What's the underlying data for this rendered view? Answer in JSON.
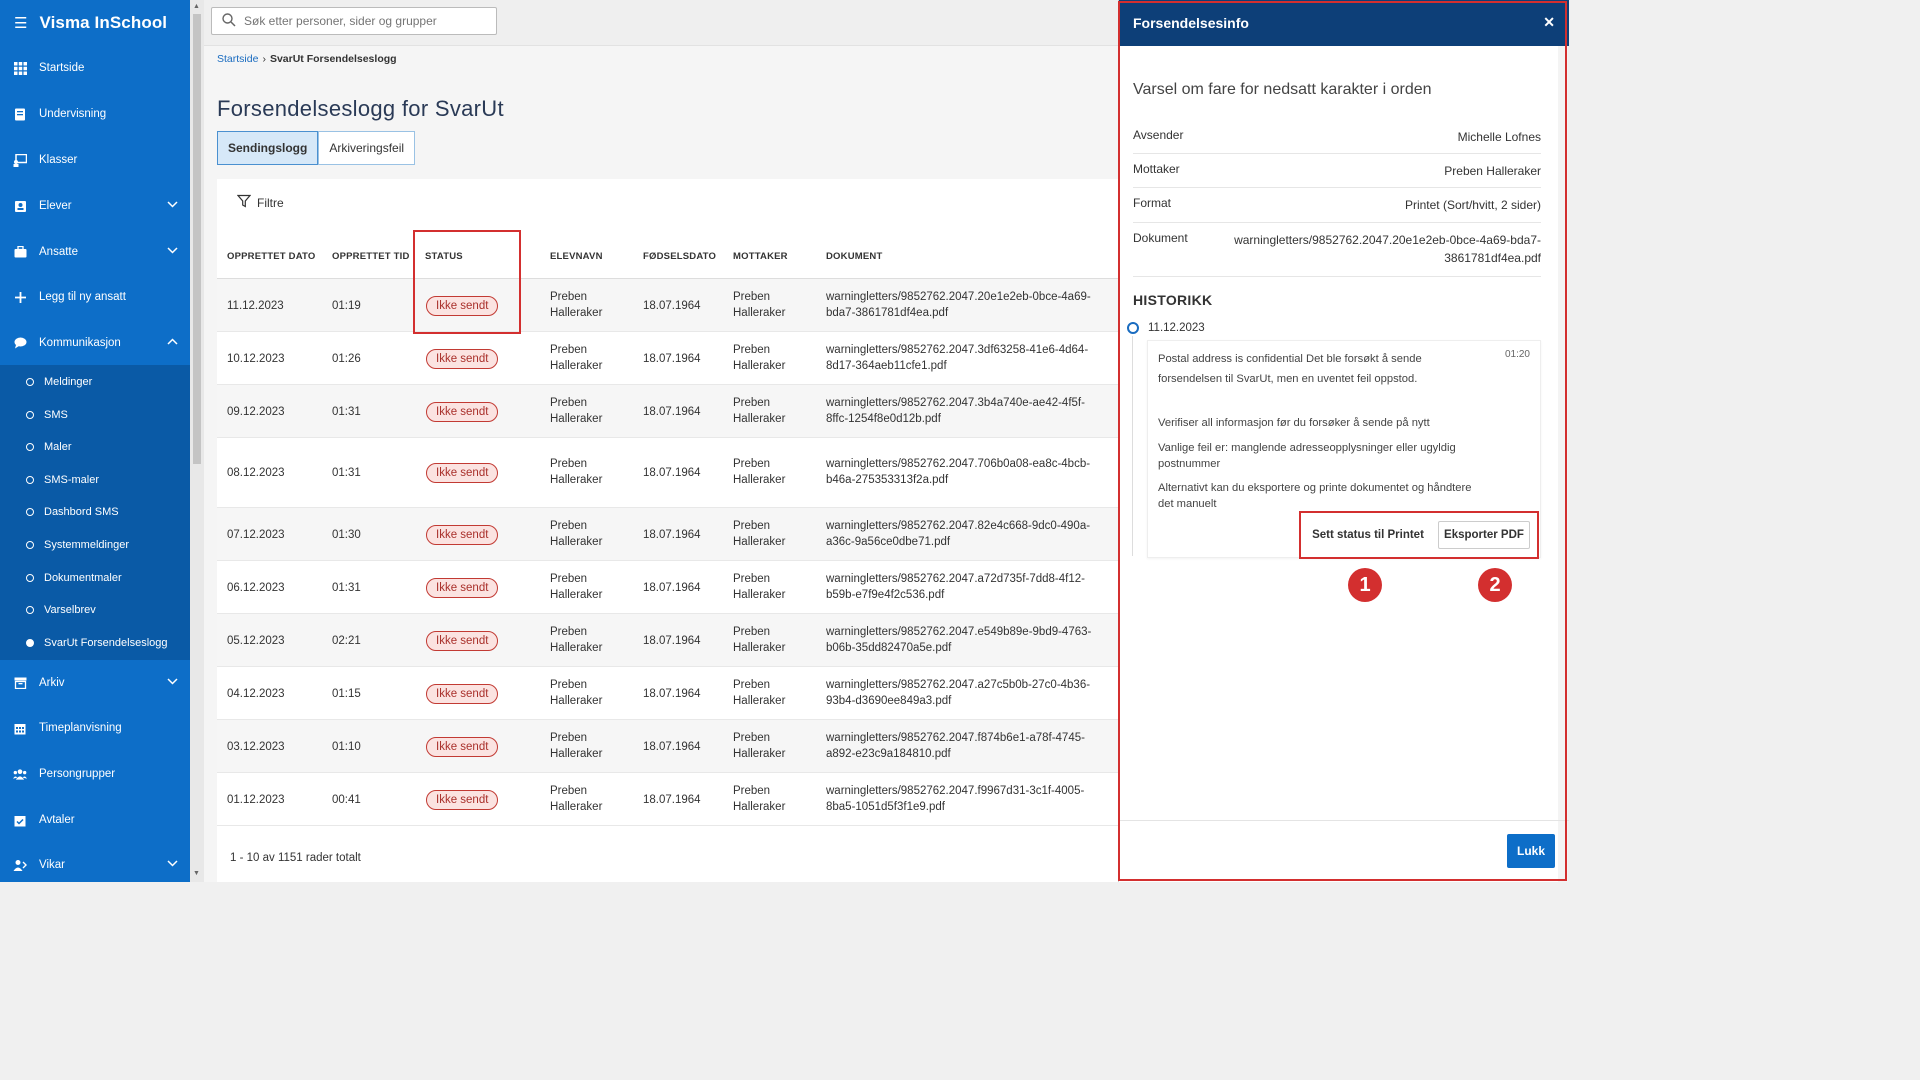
{
  "app": {
    "title": "Visma InSchool"
  },
  "search": {
    "placeholder": "Søk etter personer, sider og grupper"
  },
  "sidebar": {
    "items": [
      {
        "label": "Startside",
        "icon": "grid-icon"
      },
      {
        "label": "Undervisning",
        "icon": "book-icon"
      },
      {
        "label": "Klasser",
        "icon": "presentation-icon"
      },
      {
        "label": "Elever",
        "icon": "student-icon"
      },
      {
        "label": "Ansatte",
        "icon": "briefcase-icon"
      },
      {
        "label": "Legg til ny ansatt",
        "icon": "plus-icon"
      },
      {
        "label": "Kommunikasjon",
        "icon": "chat-icon"
      }
    ],
    "sub_items": [
      "Meldinger",
      "SMS",
      "Maler",
      "SMS-maler",
      "Dashbord SMS",
      "Systemmeldinger",
      "Dokumentmaler",
      "Varselbrev",
      "SvarUt Forsendelseslogg"
    ],
    "items_after": [
      {
        "label": "Arkiv",
        "icon": "archive-icon"
      },
      {
        "label": "Timeplanvisning",
        "icon": "calendar-icon"
      },
      {
        "label": "Persongrupper",
        "icon": "group-icon"
      },
      {
        "label": "Avtaler",
        "icon": "calendar-check-icon"
      },
      {
        "label": "Vikar",
        "icon": "substitute-icon"
      }
    ]
  },
  "breadcrumb": {
    "home": "Startside",
    "current": "SvarUt Forsendelseslogg"
  },
  "page": {
    "title": "Forsendelseslogg for SvarUt"
  },
  "tabs": [
    "Sendingslogg",
    "Arkiveringsfeil"
  ],
  "filter": {
    "label": "Filtre"
  },
  "table": {
    "headers": [
      "OPPRETTET DATO",
      "OPPRETTET TID",
      "STATUS",
      "ELEVNAVN",
      "FØDSELSDATO",
      "MOTTAKER",
      "DOKUMENT"
    ],
    "rows": [
      {
        "date": "11.12.2023",
        "time": "01:19",
        "status": "Ikke sendt",
        "student_1": "Preben",
        "student_2": "Halleraker",
        "dob": "18.07.1964",
        "recipient_1": "Preben",
        "recipient_2": "Halleraker",
        "doc_1": "warningletters/9852762.2047.20e1e2eb-0bce-4a69-",
        "doc_2": "bda7-3861781df4ea.pdf"
      },
      {
        "date": "10.12.2023",
        "time": "01:26",
        "status": "Ikke sendt",
        "student_1": "Preben",
        "student_2": "Halleraker",
        "dob": "18.07.1964",
        "recipient_1": "Preben",
        "recipient_2": "Halleraker",
        "doc_1": "warningletters/9852762.2047.3df63258-41e6-4d64-",
        "doc_2": "8d17-364aeb11cfe1.pdf"
      },
      {
        "date": "09.12.2023",
        "time": "01:31",
        "status": "Ikke sendt",
        "student_1": "Preben",
        "student_2": "Halleraker",
        "dob": "18.07.1964",
        "recipient_1": "Preben",
        "recipient_2": "Halleraker",
        "doc_1": "warningletters/9852762.2047.3b4a740e-ae42-4f5f-",
        "doc_2": "8ffc-1254f8e0d12b.pdf"
      },
      {
        "date": "08.12.2023",
        "time": "01:31",
        "status": "Ikke sendt",
        "student_1": "Preben",
        "student_2": "Halleraker",
        "dob": "18.07.1964",
        "recipient_1": "Preben",
        "recipient_2": "Halleraker",
        "doc_1": "warningletters/9852762.2047.706b0a08-ea8c-4bcb-",
        "doc_2": "b46a-275353313f2a.pdf"
      },
      {
        "date": "07.12.2023",
        "time": "01:30",
        "status": "Ikke sendt",
        "student_1": "Preben",
        "student_2": "Halleraker",
        "dob": "18.07.1964",
        "recipient_1": "Preben",
        "recipient_2": "Halleraker",
        "doc_1": "warningletters/9852762.2047.82e4c668-9dc0-490a-",
        "doc_2": "a36c-9a56ce0dbe71.pdf"
      },
      {
        "date": "06.12.2023",
        "time": "01:31",
        "status": "Ikke sendt",
        "student_1": "Preben",
        "student_2": "Halleraker",
        "dob": "18.07.1964",
        "recipient_1": "Preben",
        "recipient_2": "Halleraker",
        "doc_1": "warningletters/9852762.2047.a72d735f-7dd8-4f12-",
        "doc_2": "b59b-e7f9e4f2c536.pdf"
      },
      {
        "date": "05.12.2023",
        "time": "02:21",
        "status": "Ikke sendt",
        "student_1": "Preben",
        "student_2": "Halleraker",
        "dob": "18.07.1964",
        "recipient_1": "Preben",
        "recipient_2": "Halleraker",
        "doc_1": "warningletters/9852762.2047.e549b89e-9bd9-4763-",
        "doc_2": "b06b-35dd82470a5e.pdf"
      },
      {
        "date": "04.12.2023",
        "time": "01:15",
        "status": "Ikke sendt",
        "student_1": "Preben",
        "student_2": "Halleraker",
        "dob": "18.07.1964",
        "recipient_1": "Preben",
        "recipient_2": "Halleraker",
        "doc_1": "warningletters/9852762.2047.a27c5b0b-27c0-4b36-",
        "doc_2": "93b4-d3690ee849a3.pdf"
      },
      {
        "date": "03.12.2023",
        "time": "01:10",
        "status": "Ikke sendt",
        "student_1": "Preben",
        "student_2": "Halleraker",
        "dob": "18.07.1964",
        "recipient_1": "Preben",
        "recipient_2": "Halleraker",
        "doc_1": "warningletters/9852762.2047.f874b6e1-a78f-4745-",
        "doc_2": "a892-e23c9a184810.pdf"
      },
      {
        "date": "01.12.2023",
        "time": "00:41",
        "status": "Ikke sendt",
        "student_1": "Preben",
        "student_2": "Halleraker",
        "dob": "18.07.1964",
        "recipient_1": "Preben",
        "recipient_2": "Halleraker",
        "doc_1": "warningletters/9852762.2047.f9967d31-3c1f-4005-",
        "doc_2": "8ba5-1051d5f3f1e9.pdf"
      }
    ],
    "footer": "1 - 10 av 1151 rader totalt"
  },
  "panel": {
    "title": "Forsendelsesinfo",
    "heading": "Varsel om fare for nedsatt karakter i orden",
    "fields": [
      {
        "key": "Avsender",
        "value": "Michelle Lofnes"
      },
      {
        "key": "Mottaker",
        "value": "Preben Halleraker"
      },
      {
        "key": "Format",
        "value": "Printet (Sort/hvitt, 2 sider)"
      },
      {
        "key": "Dokument",
        "value": "warningletters/9852762.2047.20e1e2eb-0bce-4a69-bda7-",
        "value_2": "3861781df4ea.pdf"
      }
    ],
    "history_title": "HISTORIKK",
    "history": {
      "date": "11.12.2023",
      "time": "01:20",
      "line_1": "Postal address is confidential Det ble forsøkt å sende",
      "line_2": "forsendelsen til SvarUt, men en uventet feil oppstod.",
      "line_3": "Verifiser all informasjon før du forsøker å sende på nytt",
      "line_4": "Vanlige feil er: manglende adresseopplysninger eller ugyldig",
      "line_5": "postnummer",
      "line_6": "Alternativt kan du eksportere og printe dokumentet og håndtere",
      "line_7": "det manuelt"
    },
    "btn_set_status": "Sett status til Printet",
    "btn_export": "Eksporter PDF",
    "close_label": "Lukk",
    "markers": [
      "1",
      "2"
    ]
  },
  "colors": {
    "sidebar": "#0d6ec8",
    "panel_header": "#0d3f78",
    "badge_border": "#c23a33",
    "highlight": "#d32f2f"
  }
}
